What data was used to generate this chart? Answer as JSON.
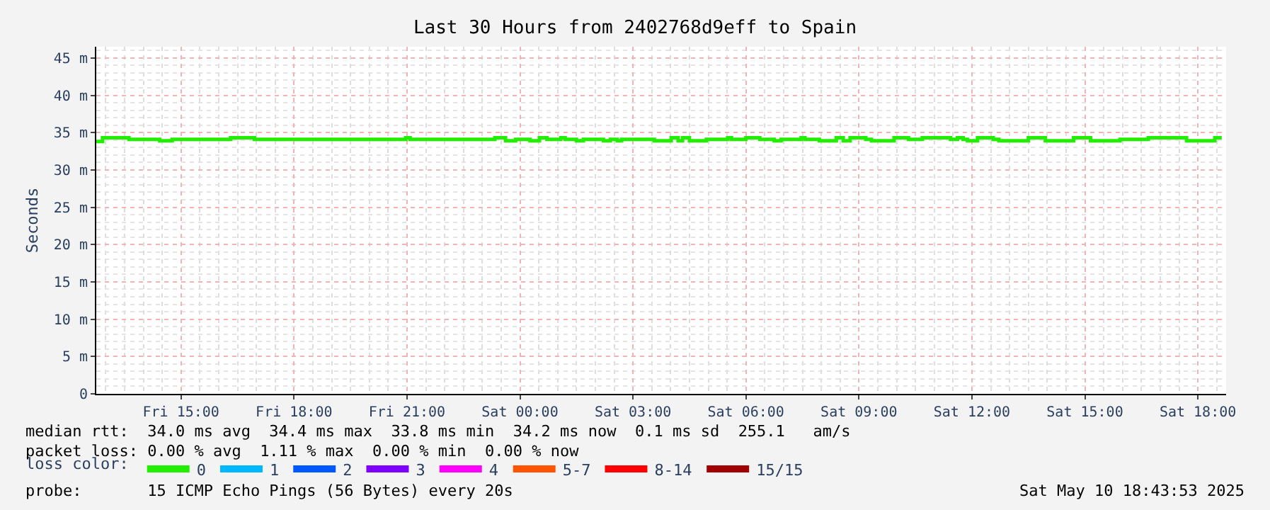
{
  "chart_data": {
    "type": "step",
    "title": "Last 30 Hours from 2402768d9eff to Spain",
    "ylabel": "Seconds",
    "x": [
      "2025-05-09T12:45",
      "2025-05-09T12:55",
      "2025-05-09T13:37",
      "2025-05-09T14:26",
      "2025-05-09T14:46",
      "2025-05-09T16:19",
      "2025-05-09T16:57",
      "2025-05-09T20:58",
      "2025-05-09T21:05",
      "2025-05-09T23:20",
      "2025-05-09T23:37",
      "2025-05-09T23:53",
      "2025-05-10T00:16",
      "2025-05-10T00:31",
      "2025-05-10T00:43",
      "2025-05-10T01:05",
      "2025-05-10T01:12",
      "2025-05-10T01:30",
      "2025-05-10T01:41",
      "2025-05-10T02:13",
      "2025-05-10T02:24",
      "2025-05-10T02:35",
      "2025-05-10T02:42",
      "2025-05-10T03:34",
      "2025-05-10T04:01",
      "2025-05-10T04:12",
      "2025-05-10T04:19",
      "2025-05-10T04:30",
      "2025-05-10T04:57",
      "2025-05-10T05:31",
      "2025-05-10T05:37",
      "2025-05-10T06:00",
      "2025-05-10T06:22",
      "2025-05-10T06:45",
      "2025-05-10T06:56",
      "2025-05-10T07:28",
      "2025-05-10T07:34",
      "2025-05-10T07:57",
      "2025-05-10T08:24",
      "2025-05-10T08:35",
      "2025-05-10T08:46",
      "2025-05-10T09:11",
      "2025-05-10T09:20",
      "2025-05-10T09:56",
      "2025-05-10T10:19",
      "2025-05-10T10:41",
      "2025-05-10T11:26",
      "2025-05-10T11:37",
      "2025-05-10T11:46",
      "2025-05-10T11:53",
      "2025-05-10T12:09",
      "2025-05-10T12:34",
      "2025-05-10T12:43",
      "2025-05-10T13:30",
      "2025-05-10T13:57",
      "2025-05-10T14:42",
      "2025-05-10T15:09",
      "2025-05-10T15:56",
      "2025-05-10T16:41",
      "2025-05-10T17:42",
      "2025-05-10T18:27",
      "2025-05-10T18:38"
    ],
    "series": [
      {
        "name": "0",
        "color": "#22ee00",
        "values": [
          33.8,
          34.3,
          34.1,
          33.9,
          34.1,
          34.3,
          34.1,
          34.3,
          34.1,
          34.3,
          33.9,
          34.1,
          33.9,
          34.3,
          34.1,
          34.3,
          34.1,
          33.9,
          34.1,
          33.9,
          34.1,
          33.9,
          34.1,
          33.9,
          34.3,
          33.9,
          34.3,
          33.9,
          34.1,
          34.3,
          34.1,
          34.3,
          34.1,
          33.9,
          34.1,
          34.3,
          34.1,
          33.9,
          34.3,
          33.9,
          34.3,
          34.1,
          33.9,
          34.3,
          34.1,
          34.3,
          34.1,
          34.3,
          34.1,
          33.9,
          34.3,
          34.1,
          33.9,
          34.3,
          33.9,
          34.3,
          33.9,
          34.1,
          34.3,
          33.9,
          34.3,
          34.3
        ]
      },
      {
        "name": "1",
        "color": "#00b8ff",
        "values": [
          null,
          null,
          null,
          null,
          null,
          null,
          null,
          null,
          null,
          null,
          null,
          null,
          null,
          null,
          null,
          null,
          null,
          null,
          null,
          null,
          null,
          null,
          null,
          null,
          null,
          null,
          null,
          null,
          null,
          null,
          null,
          null,
          null,
          null,
          null,
          null,
          null,
          null,
          null,
          null,
          null,
          null,
          null,
          null,
          null,
          null,
          null,
          null,
          null,
          null,
          null,
          null,
          null,
          null,
          null,
          null,
          null,
          null,
          null,
          null,
          null,
          null
        ]
      },
      {
        "name": "2",
        "color": "#0059ff",
        "values": [
          null,
          null,
          null,
          null,
          null,
          null,
          null,
          null,
          null,
          null,
          null,
          null,
          null,
          null,
          null,
          null,
          null,
          null,
          null,
          null,
          null,
          null,
          null,
          null,
          null,
          null,
          null,
          null,
          null,
          null,
          null,
          null,
          null,
          null,
          null,
          null,
          null,
          null,
          null,
          null,
          null,
          null,
          null,
          null,
          null,
          null,
          null,
          null,
          null,
          null,
          null,
          null,
          null,
          null,
          null,
          null,
          null,
          null,
          null,
          null,
          null,
          null
        ]
      },
      {
        "name": "3",
        "color": "#7e00ff",
        "values": [
          null,
          null,
          null,
          null,
          null,
          null,
          null,
          null,
          null,
          null,
          null,
          null,
          null,
          null,
          null,
          null,
          null,
          null,
          null,
          null,
          null,
          null,
          null,
          null,
          null,
          null,
          null,
          null,
          null,
          null,
          null,
          null,
          null,
          null,
          null,
          null,
          null,
          null,
          null,
          null,
          null,
          null,
          null,
          null,
          null,
          null,
          null,
          null,
          null,
          null,
          null,
          null,
          null,
          null,
          null,
          null,
          null,
          null,
          null,
          null,
          null,
          null
        ]
      },
      {
        "name": "4",
        "color": "#ff00ff",
        "values": [
          null,
          null,
          null,
          null,
          null,
          null,
          null,
          null,
          null,
          null,
          null,
          null,
          null,
          null,
          null,
          null,
          null,
          null,
          null,
          null,
          null,
          null,
          null,
          null,
          null,
          null,
          null,
          null,
          null,
          null,
          null,
          null,
          null,
          null,
          null,
          null,
          null,
          null,
          null,
          null,
          null,
          null,
          null,
          null,
          null,
          null,
          null,
          null,
          null,
          null,
          null,
          null,
          null,
          null,
          null,
          null,
          null,
          null,
          null,
          null,
          null,
          null
        ]
      },
      {
        "name": "5-7",
        "color": "#ff5500",
        "values": [
          null,
          null,
          null,
          null,
          null,
          null,
          null,
          null,
          null,
          null,
          null,
          null,
          null,
          null,
          null,
          null,
          null,
          null,
          null,
          null,
          null,
          null,
          null,
          null,
          null,
          null,
          null,
          null,
          null,
          null,
          null,
          null,
          null,
          null,
          null,
          null,
          null,
          null,
          null,
          null,
          null,
          null,
          null,
          null,
          null,
          null,
          null,
          null,
          null,
          null,
          null,
          null,
          null,
          null,
          null,
          null,
          null,
          null,
          null,
          null,
          null,
          null
        ]
      },
      {
        "name": "8-14",
        "color": "#ff0000",
        "values": [
          null,
          null,
          null,
          null,
          null,
          null,
          null,
          null,
          null,
          null,
          null,
          null,
          null,
          null,
          null,
          null,
          null,
          null,
          null,
          null,
          null,
          null,
          null,
          null,
          null,
          null,
          null,
          null,
          null,
          null,
          null,
          null,
          null,
          null,
          null,
          null,
          null,
          null,
          null,
          null,
          null,
          null,
          null,
          null,
          null,
          null,
          null,
          null,
          null,
          null,
          null,
          null,
          null,
          null,
          null,
          null,
          null,
          null,
          null,
          null,
          null,
          null
        ]
      },
      {
        "name": "15/15",
        "color": "#a10000",
        "values": [
          null,
          null,
          null,
          null,
          null,
          null,
          null,
          null,
          null,
          null,
          null,
          null,
          null,
          null,
          null,
          null,
          null,
          null,
          null,
          null,
          null,
          null,
          null,
          null,
          null,
          null,
          null,
          null,
          null,
          null,
          null,
          null,
          null,
          null,
          null,
          null,
          null,
          null,
          null,
          null,
          null,
          null,
          null,
          null,
          null,
          null,
          null,
          null,
          null,
          null,
          null,
          null,
          null,
          null,
          null,
          null,
          null,
          null,
          null,
          null,
          null,
          null
        ]
      }
    ],
    "legend_title": "loss color:",
    "legend": "bottom",
    "xlim": [
      "2025-05-09T12:45",
      "2025-05-10T18:45"
    ],
    "xticks": [
      {
        "value": "2025-05-09T15:00",
        "label": "Fri 15:00"
      },
      {
        "value": "2025-05-09T18:00",
        "label": "Fri 18:00"
      },
      {
        "value": "2025-05-09T21:00",
        "label": "Fri 21:00"
      },
      {
        "value": "2025-05-10T00:00",
        "label": "Sat 00:00"
      },
      {
        "value": "2025-05-10T03:00",
        "label": "Sat 03:00"
      },
      {
        "value": "2025-05-10T06:00",
        "label": "Sat 06:00"
      },
      {
        "value": "2025-05-10T09:00",
        "label": "Sat 09:00"
      },
      {
        "value": "2025-05-10T12:00",
        "label": "Sat 12:00"
      },
      {
        "value": "2025-05-10T15:00",
        "label": "Sat 15:00"
      },
      {
        "value": "2025-05-10T18:00",
        "label": "Sat 18:00"
      }
    ],
    "ylim": [
      0,
      46.5
    ],
    "yticks": [
      0,
      {
        "value": 5,
        "label": "5 m"
      },
      {
        "value": 10,
        "label": "10 m"
      },
      {
        "value": 15,
        "label": "15 m"
      },
      {
        "value": 20,
        "label": "20 m"
      },
      {
        "value": 25,
        "label": "25 m"
      },
      {
        "value": 30,
        "label": "30 m"
      },
      {
        "value": 35,
        "label": "35 m"
      },
      {
        "value": 40,
        "label": "40 m"
      },
      {
        "value": 45,
        "label": "45 m"
      }
    ],
    "grid": true,
    "annotations": [
      "median rtt:  34.0 ms avg  34.4 ms max  33.8 ms min  34.2 ms now  0.1 ms sd  255.1   am/s",
      "packet loss: 0.00 % avg  1.11 % max  0.00 % min  0.00 % now",
      "probe:       15 ICMP Echo Pings (56 Bytes) every 20s",
      "Sat May 10 18:43:53 2025"
    ]
  }
}
